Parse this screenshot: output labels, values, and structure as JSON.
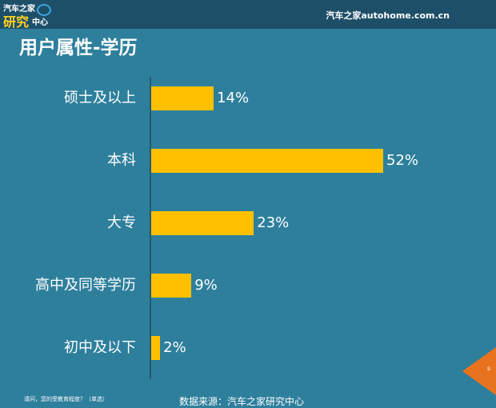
{
  "header": {
    "logo_line1": "汽车之家",
    "logo_line2": "研究",
    "logo_line3": "中心",
    "site": "汽车之家autohome.com.cn"
  },
  "page_title": "用户属性-学历",
  "chart_data": {
    "type": "bar",
    "orientation": "horizontal",
    "title": "用户属性-学历",
    "categories": [
      "硕士及以上",
      "本科",
      "大专",
      "高中及同等学历",
      "初中及以下"
    ],
    "values": [
      14,
      52,
      23,
      9,
      2
    ],
    "value_labels": [
      "14%",
      "52%",
      "23%",
      "9%",
      "2%"
    ],
    "unit": "%",
    "bar_color": "#ffc000",
    "xlim": [
      0,
      100
    ],
    "grid": false
  },
  "footer": {
    "question": "请问，您的受教育程度？（单选）",
    "source": "数据来源：汽车之家研究中心",
    "page_number": "9"
  },
  "colors": {
    "background": "#2e7f9c",
    "header": "#1e4f69",
    "accent": "#e8731f"
  }
}
